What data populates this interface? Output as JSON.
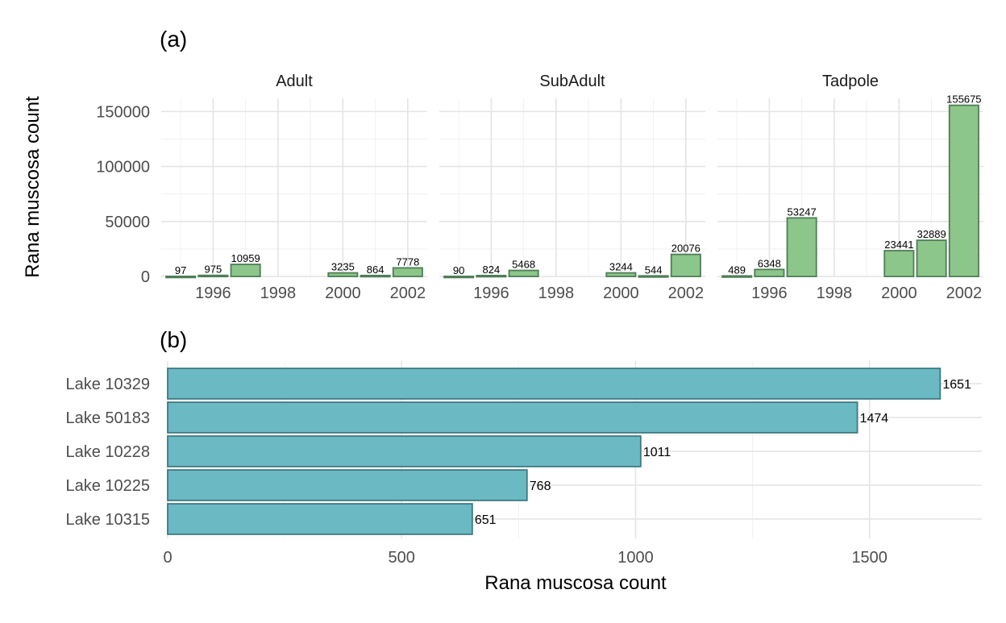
{
  "chart_data": [
    {
      "type": "bar",
      "panel_tag": "(a)",
      "ylabel": "Rana muscosa count",
      "ylim": [
        0,
        162000
      ],
      "y_ticks": [
        0,
        50000,
        100000,
        150000
      ],
      "y_tick_labels": [
        "0",
        "50000",
        "100000",
        "150000"
      ],
      "xlim": [
        1994.4,
        2002.6
      ],
      "x_ticks": [
        1996,
        1998,
        2000,
        2002
      ],
      "x_tick_labels": [
        "1996",
        "1998",
        "2000",
        "2002"
      ],
      "bar_color": "#8cc68a",
      "bar_border": "#4e7d57",
      "grid": true,
      "facets": [
        {
          "name": "Adult",
          "years": [
            1995,
            1996,
            1997,
            2000,
            2001,
            2002
          ],
          "values": [
            97,
            975,
            10959,
            3235,
            864,
            7778
          ]
        },
        {
          "name": "SubAdult",
          "years": [
            1995,
            1996,
            1997,
            2000,
            2001,
            2002
          ],
          "values": [
            90,
            824,
            5468,
            3244,
            544,
            20076
          ]
        },
        {
          "name": "Tadpole",
          "years": [
            1995,
            1996,
            1997,
            2000,
            2001,
            2002
          ],
          "values": [
            489,
            6348,
            53247,
            23441,
            32889,
            155675
          ]
        }
      ]
    },
    {
      "type": "bar",
      "orientation": "horizontal",
      "panel_tag": "(b)",
      "xlabel": "Rana muscosa count",
      "categories": [
        "Lake 10329",
        "Lake 50183",
        "Lake 10228",
        "Lake 10225",
        "Lake 10315"
      ],
      "values": [
        1651,
        1474,
        1011,
        768,
        651
      ],
      "xlim": [
        0,
        1740
      ],
      "x_ticks": [
        0,
        500,
        1000,
        1500
      ],
      "x_tick_labels": [
        "0",
        "500",
        "1000",
        "1500"
      ],
      "bar_color": "#6ab9c3",
      "bar_border": "#3c7a80",
      "grid": true
    }
  ]
}
